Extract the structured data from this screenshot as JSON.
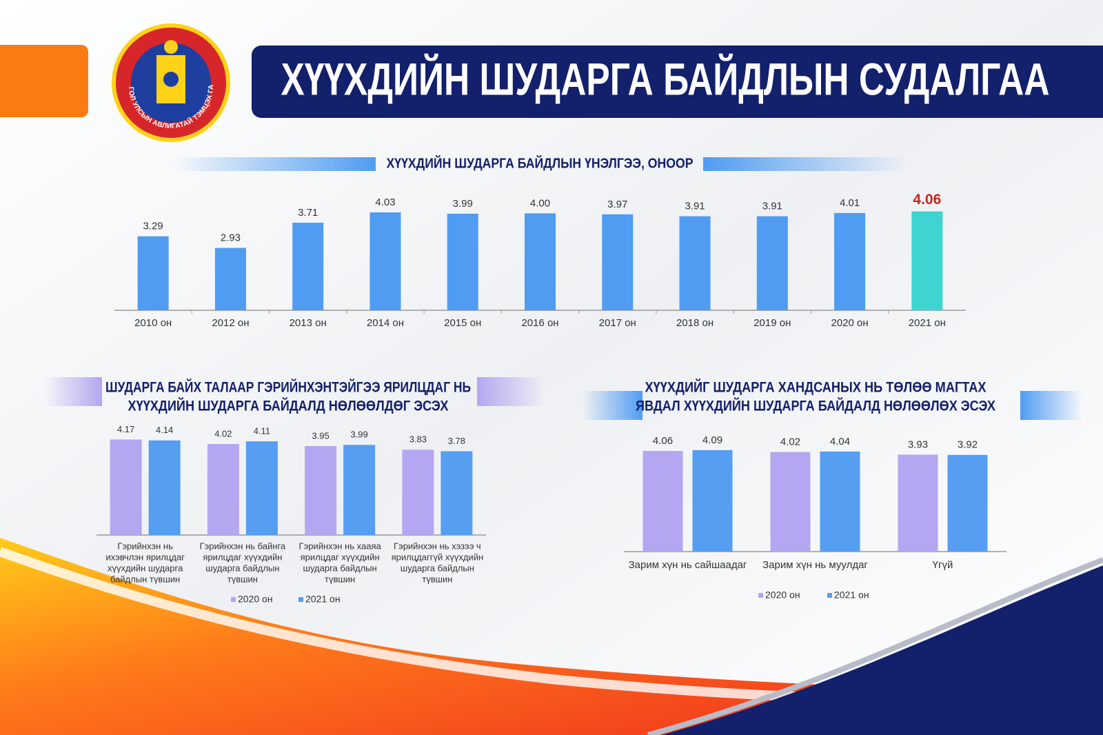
{
  "header": {
    "title": "ХҮҮХДИЙН ШУДАРГА БАЙДЛЫН СУДАЛГАА",
    "logo_text": "МОНГОЛ УЛСЫН АВЛИГАТАЙ ТЭМЦЭХ ГАЗАР"
  },
  "chart_data": [
    {
      "type": "bar",
      "title": [
        "ХҮҮХДИЙН ШУДАРГА БАЙДЛЫН ҮНЭЛГЭЭ, ОНООР"
      ],
      "categories": [
        [
          "2010 он"
        ],
        [
          "2012 он"
        ],
        [
          "2013 он"
        ],
        [
          "2014 он"
        ],
        [
          "2015 он"
        ],
        [
          "2016 он"
        ],
        [
          "2017 он"
        ],
        [
          "2018 он"
        ],
        [
          "2019 он"
        ],
        [
          "2020 он"
        ],
        [
          "2021 он"
        ]
      ],
      "series": [
        {
          "values": [
            3.29,
            2.93,
            3.71,
            4.03,
            3.99,
            4.0,
            3.97,
            3.91,
            3.91,
            4.01,
            4.06
          ],
          "value_labels": [
            "3.29",
            "2.93",
            "3.71",
            "4.03",
            "3.99",
            "4.00",
            "3.97",
            "3.91",
            "3.91",
            "4.01",
            "4.06"
          ],
          "colors": [
            "#4f9cf2",
            "#4f9cf2",
            "#4f9cf2",
            "#4f9cf2",
            "#4f9cf2",
            "#4f9cf2",
            "#4f9cf2",
            "#4f9cf2",
            "#4f9cf2",
            "#4f9cf2",
            "#3dd4d2"
          ],
          "value_label_colors": [
            "#333333",
            "#333333",
            "#333333",
            "#333333",
            "#333333",
            "#333333",
            "#333333",
            "#333333",
            "#333333",
            "#333333",
            "#d0201c"
          ]
        }
      ],
      "ylim": [
        1,
        4.5
      ]
    },
    {
      "type": "bar",
      "title": [
        "ШУДАРГА БАЙХ ТАЛААР ГЭРИЙНХЭНТЭЙГЭЭ ЯРИЛЦДАГ НЬ",
        "ХҮҮХДИЙН ШУДАРГА БАЙДАЛД НӨЛӨӨЛДӨГ ЭСЭХ"
      ],
      "categories": [
        [
          "Гэрийнхэн нь",
          "ихэвчлэн ярилцдаг",
          "хүүхдийн шударга",
          "байдлын түвшин"
        ],
        [
          "Гэрийнхэн нь байнга",
          "ярилцдаг хүүхдийн",
          "шударга байдлын",
          "түвшин"
        ],
        [
          "Гэрийнхэн нь  хааяа",
          "ярилцдаг хүүхдийн",
          "шударга байдлын",
          "түвшин"
        ],
        [
          "Гэрийнхэн нь  хэзээ ч",
          "ярилцдаггүй хүүхдийн",
          "шударга байдлын",
          "түвшин"
        ]
      ],
      "series": [
        {
          "name": "2020 он",
          "color": "#b4a6f0",
          "values": [
            4.17,
            4.02,
            3.95,
            3.83
          ]
        },
        {
          "name": "2021 он",
          "color": "#559ef2",
          "values": [
            4.14,
            4.11,
            3.99,
            3.78
          ]
        }
      ],
      "ylim": [
        1,
        4.5
      ]
    },
    {
      "type": "bar",
      "title": [
        "ХҮҮХДИЙГ ШУДАРГА ХАНДСАНЫХ НЬ ТӨЛӨӨ МАГТАХ",
        "ЯВДАЛ ХҮҮХДИЙН ШУДАРГА БАЙДАЛД НӨЛӨӨЛӨХ ЭСЭХ"
      ],
      "categories": [
        [
          "Зарим хүн нь сайшаадаг"
        ],
        [
          "Зарим хүн нь муулдаг"
        ],
        [
          "Үгүй"
        ]
      ],
      "series": [
        {
          "name": "2020 он",
          "color": "#b4a6f0",
          "values": [
            4.06,
            4.02,
            3.93
          ]
        },
        {
          "name": "2021 он",
          "color": "#559ef2",
          "values": [
            4.09,
            4.04,
            3.92
          ]
        }
      ],
      "ylim": [
        0.5,
        4.5
      ]
    }
  ]
}
